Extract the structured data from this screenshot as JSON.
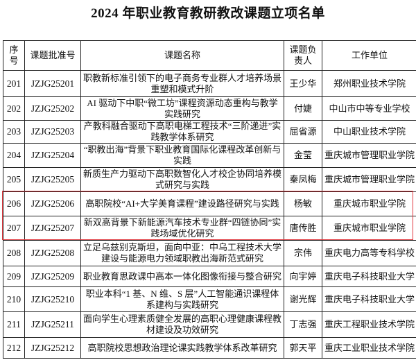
{
  "title": "2024 年职业教育教研教改课题立项名单",
  "table": {
    "headers": [
      "序号",
      "课题批准号",
      "课题名称",
      "课题负责人",
      "工作单位"
    ],
    "rows": [
      {
        "no": "201",
        "code": "JZJG25201",
        "name": "职教新标准引领下的电子商务专业群人才培养场景重塑和模式升阶",
        "lead": "王少华",
        "unit": "郑州职业技术学院"
      },
      {
        "no": "202",
        "code": "JZJG25202",
        "name": "AI 驱动下中职“微工坊”课程资源动态重构与教学实践研究",
        "lead": "付婕",
        "unit": "中山市中等专业学校"
      },
      {
        "no": "203",
        "code": "JZJG25203",
        "name": "产教科融合驱动下高职电梯工程技术“三阶递进”实践教学体系研究",
        "lead": "屈省源",
        "unit": "中山职业技术学院"
      },
      {
        "no": "204",
        "code": "JZJG25204",
        "name": "“职教出海”背景下职业教育国际化课程改革创新与实践",
        "lead": "金莹",
        "unit": "重庆城市管理职业学院"
      },
      {
        "no": "205",
        "code": "JZJG25205",
        "name": "新质生产力驱动下高职数智化人才校企协同培养模式研究与实践",
        "lead": "秦凤梅",
        "unit": "重庆城市管理职业学院"
      },
      {
        "no": "206",
        "code": "JZJG25206",
        "name": "高职院校“AI+大学美育课程”建设路径研究与实践",
        "lead": "杨敏",
        "unit": "重庆城市职业学院"
      },
      {
        "no": "207",
        "code": "JZJG25207",
        "name": "新双高背景下新能源汽车技术专业群“四链协同”实践场域优化研究",
        "lead": "唐传胜",
        "unit": "重庆城市职业学院"
      },
      {
        "no": "208",
        "code": "JZJG25208",
        "name": "立足乌兹别克斯坦，面向中亚：中乌工程技术大学建设与能源电力领域职教出海新范式研究",
        "lead": "宗伟",
        "unit": "重庆电力高等专科学校"
      },
      {
        "no": "209",
        "code": "JZJG25209",
        "name": "职业教育思政课中高本一体化图像衔接与整合研究",
        "lead": "向宇婷",
        "unit": "重庆电子科技职业大学"
      },
      {
        "no": "210",
        "code": "JZJG25210",
        "name": "职业本科“1 基、N 维、S 层”人工智能通识课程体系建构与实践研究",
        "lead": "谢光辉",
        "unit": "重庆电子科技职业大学"
      },
      {
        "no": "211",
        "code": "JZJG25211",
        "name": "面向学生心理素质健全发展的高职心理健康课程教材建设及功效研究",
        "lead": "丁志强",
        "unit": "重庆工程职业技术学院"
      },
      {
        "no": "212",
        "code": "JZJG25212",
        "name": "高职院校思想政治理论课实践教学体系改革研究",
        "lead": "郭天平",
        "unit": "重庆工业职业技术学院"
      }
    ]
  },
  "highlight_color": "#e0383e"
}
